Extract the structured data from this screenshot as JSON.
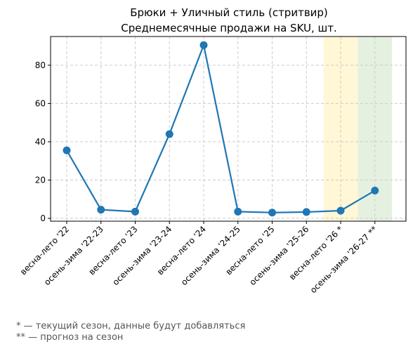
{
  "chart_data": {
    "type": "line",
    "title_line1": "Брюки + Уличный стиль (стритвир)",
    "title_line2": "Среднемесячные продажи на SKU, шт.",
    "xlabel": "",
    "ylabel": "",
    "categories": [
      "весна-лето '22",
      "осень-зима '22-23",
      "весна-лето '23",
      "осень-зима '23-24",
      "весна-лето '24",
      "осень-зима '24-25",
      "весна-лето '25",
      "осень-зима '25-26",
      "весна-лето '26 *",
      "осень-зима '26-27 **"
    ],
    "series": [
      {
        "values": [
          35.5,
          4.5,
          3.5,
          44,
          90.5,
          3.5,
          3,
          3.3,
          4,
          14.5
        ],
        "color": "#1f77b4"
      }
    ],
    "ylim": [
      -1.5,
      95
    ],
    "yticks": [
      0,
      20,
      40,
      60,
      80
    ],
    "grid": true,
    "highlight_bands": [
      {
        "category_index": 8,
        "color": "#fff7d6",
        "meaning": "current season"
      },
      {
        "category_index": 9,
        "color": "#e5f1e0",
        "meaning": "forecast"
      }
    ]
  },
  "footnotes": {
    "current": "* — текущий сезон, данные будут добавляться",
    "forecast": "** — прогноз на сезон"
  }
}
